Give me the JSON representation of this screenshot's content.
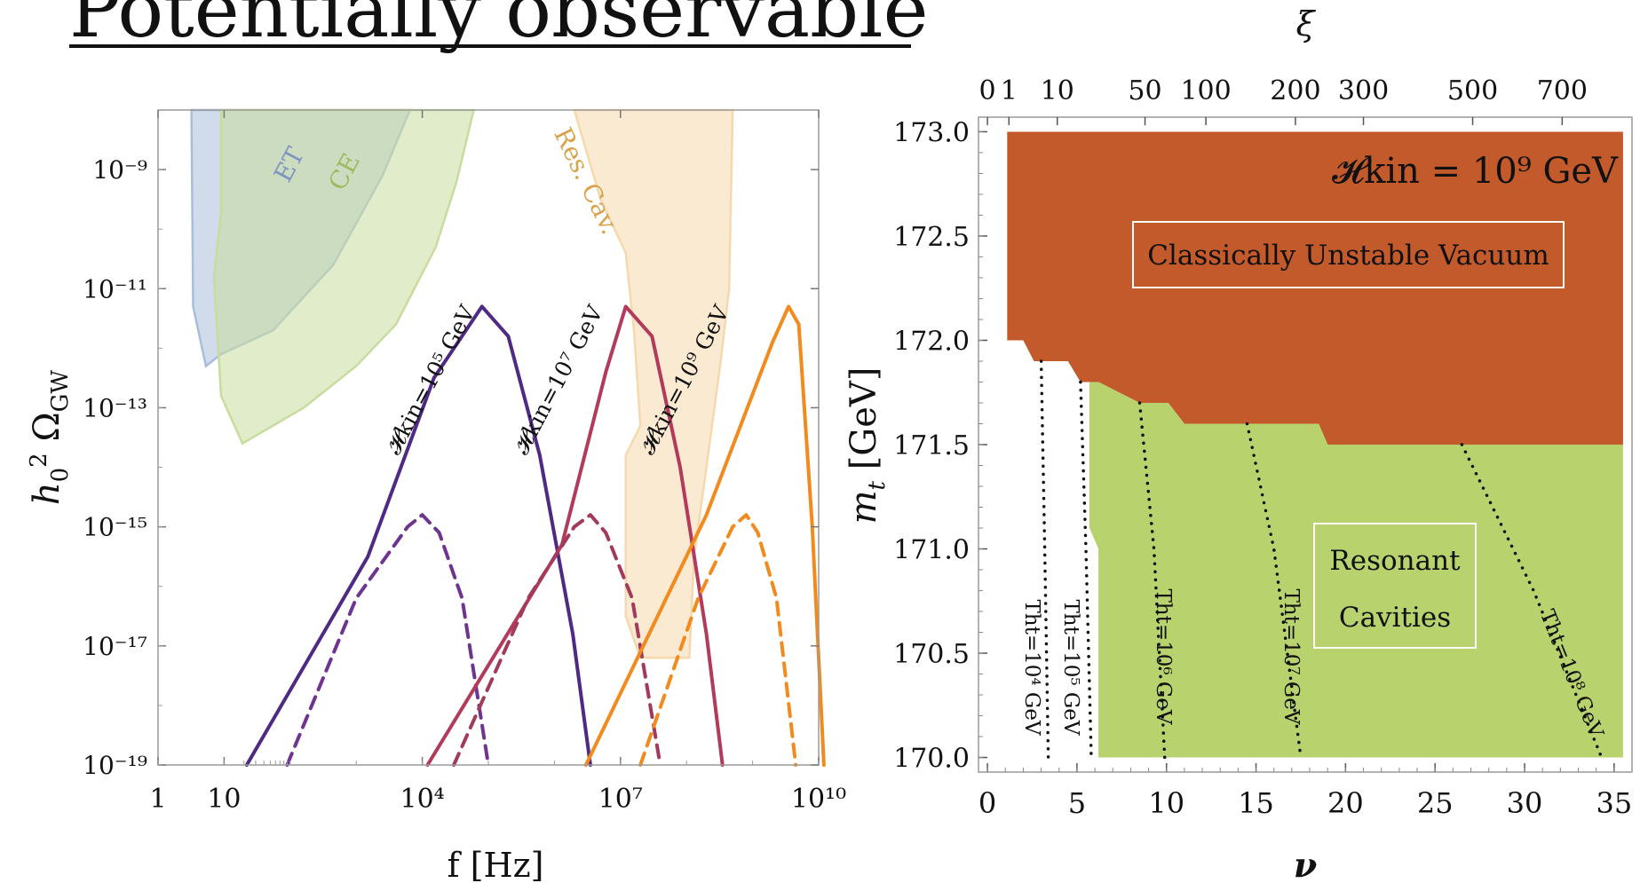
{
  "page": {
    "title": "Potentially observable"
  },
  "chart_data": [
    {
      "type": "line",
      "xlabel": "f [Hz]",
      "ylabel": "h0^2 ΩGW",
      "ylabel_main": "h",
      "ylabel_sub": "0",
      "ylabel_sup": "2",
      "ylabel_omega": "Ω",
      "ylabel_omega_sub": "GW",
      "x_scale": "log",
      "y_scale": "log",
      "xlim": [
        1,
        10000000000
      ],
      "ylim": [
        1e-19,
        1e-08
      ],
      "x_ticks": [
        {
          "v": 1,
          "label": "1"
        },
        {
          "v": 10,
          "label": "10"
        },
        {
          "v": 10000,
          "label": "10⁴"
        },
        {
          "v": 10000000,
          "label": "10⁷"
        },
        {
          "v": 10000000000,
          "label": "10¹⁰"
        }
      ],
      "y_ticks": [
        {
          "exp": -9,
          "label": "10⁻⁹"
        },
        {
          "exp": -11,
          "label": "10⁻¹¹"
        },
        {
          "exp": -13,
          "label": "10⁻¹³"
        },
        {
          "exp": -15,
          "label": "10⁻¹⁵"
        },
        {
          "exp": -17,
          "label": "10⁻¹⁷"
        },
        {
          "exp": -19,
          "label": "10⁻¹⁹"
        }
      ],
      "sensitivity_regions": [
        {
          "label": "ET",
          "color": "#a9bedb",
          "points": [
            [
              3.2,
              -8
            ],
            [
              3.4,
              -11.3
            ],
            [
              5.3,
              -12.3
            ],
            [
              9,
              -12.1
            ],
            [
              55,
              -11.7
            ],
            [
              450,
              -10.6
            ],
            [
              2500,
              -9.1
            ],
            [
              6500,
              -8
            ]
          ]
        },
        {
          "label": "CE",
          "color": "#c8dc9e",
          "points": [
            [
              9,
              -8
            ],
            [
              9,
              -9.7
            ],
            [
              7,
              -10.8
            ],
            [
              9,
              -12.8
            ],
            [
              19,
              -13.6
            ],
            [
              160,
              -13
            ],
            [
              1000,
              -12.3
            ],
            [
              4000,
              -11.6
            ],
            [
              16000,
              -10.3
            ],
            [
              33000,
              -9.2
            ],
            [
              60000,
              -8
            ]
          ]
        },
        {
          "label": "Res. Cav.",
          "color": "#f5d9ad",
          "points": [
            [
              2000000,
              -8
            ],
            [
              5000000,
              -9.5
            ],
            [
              12000000,
              -10.4
            ],
            [
              16000000,
              -11.7
            ],
            [
              20000000,
              -13.3
            ],
            [
              12000000,
              -13.8
            ],
            [
              12000000,
              -16.5
            ],
            [
              20000000,
              -17.2
            ],
            [
              110000000,
              -17.2
            ],
            [
              130000000,
              -15.5
            ],
            [
              200000000,
              -14
            ],
            [
              330000000,
              -12.2
            ],
            [
              440000000,
              -11
            ],
            [
              500000000,
              -8
            ]
          ]
        }
      ],
      "series": [
        {
          "name": "𝓗kin=10⁵ GeV",
          "color": "#4e2a84",
          "style": "solid",
          "points": [
            [
              22,
              -19
            ],
            [
              1500,
              -15.5
            ],
            [
              15000,
              -12.5
            ],
            [
              80000,
              -11.3
            ],
            [
              200000,
              -11.8
            ],
            [
              600000,
              -13.8
            ],
            [
              1900000,
              -16.8
            ],
            [
              3500000,
              -19
            ]
          ]
        },
        {
          "name": "",
          "color": "#6e3590",
          "style": "dashed",
          "points": [
            [
              90,
              -19
            ],
            [
              1000,
              -16.2
            ],
            [
              6000,
              -15
            ],
            [
              10000,
              -14.8
            ],
            [
              18000,
              -15.1
            ],
            [
              40000,
              -16.2
            ],
            [
              100000,
              -19
            ]
          ]
        },
        {
          "name": "𝓗kin=10⁷ GeV",
          "color": "#b23a5a",
          "style": "solid",
          "points": [
            [
              12000,
              -19
            ],
            [
              1300000,
              -15.3
            ],
            [
              6000000,
              -12.4
            ],
            [
              12000000,
              -11.3
            ],
            [
              30000000,
              -11.8
            ],
            [
              80000000,
              -14
            ],
            [
              200000000,
              -16.8
            ],
            [
              350000000,
              -19
            ]
          ]
        },
        {
          "name": "",
          "color": "#a23a5a",
          "style": "dashed",
          "points": [
            [
              30000,
              -19
            ],
            [
              400000,
              -16.2
            ],
            [
              2000000,
              -15
            ],
            [
              3500000,
              -14.8
            ],
            [
              6000000,
              -15.1
            ],
            [
              15000000,
              -16.2
            ],
            [
              40000000,
              -19
            ]
          ]
        },
        {
          "name": "𝓗kin=10⁹ GeV",
          "color": "#f28a1e",
          "style": "solid",
          "points": [
            [
              3000000,
              -19
            ],
            [
              200000000,
              -14.8
            ],
            [
              2000000000,
              -11.9
            ],
            [
              3500000000,
              -11.3
            ],
            [
              5000000000,
              -11.6
            ],
            [
              8000000000,
              -15
            ],
            [
              12000000000,
              -19
            ]
          ]
        },
        {
          "name": "",
          "color": "#f28a1e",
          "style": "dashed",
          "points": [
            [
              20000000,
              -19
            ],
            [
              150000000,
              -16.2
            ],
            [
              500000000,
              -15
            ],
            [
              800000000,
              -14.8
            ],
            [
              1200000000,
              -15.1
            ],
            [
              2300000000,
              -16.2
            ],
            [
              4500000000,
              -19
            ]
          ]
        }
      ]
    },
    {
      "type": "area",
      "xlabel": "ν",
      "x2label": "ξ",
      "ylabel": "mt [GeV]",
      "ylabel_main": "m",
      "ylabel_sub": "t",
      "ylabel_unit": " [GeV]",
      "xlim": [
        -0.5,
        36
      ],
      "ylim": [
        169.93,
        173.07
      ],
      "x_ticks": [
        0,
        5,
        10,
        15,
        20,
        25,
        30,
        35
      ],
      "y_ticks": [
        "170.0",
        "170.5",
        "171.0",
        "171.5",
        "172.0",
        "172.5",
        "173.0"
      ],
      "xi_ticks": [
        {
          "label": "0",
          "nu": 0
        },
        {
          "label": "1",
          "nu": 1.2
        },
        {
          "label": "10",
          "nu": 3.9
        },
        {
          "label": "50",
          "nu": 8.8
        },
        {
          "label": "100",
          "nu": 12.2
        },
        {
          "label": "200",
          "nu": 17.2
        },
        {
          "label": "300",
          "nu": 21
        },
        {
          "label": "500",
          "nu": 27.1
        },
        {
          "label": "700",
          "nu": 32.1
        }
      ],
      "annotation": "𝓗kin = 10⁹ GeV",
      "regions": [
        {
          "label": "Classically Unstable Vacuum",
          "color": "#c35a2b",
          "points": [
            [
              1.1,
              173
            ],
            [
              35.5,
              173
            ],
            [
              35.5,
              171.5
            ],
            [
              19,
              171.5
            ],
            [
              18.5,
              171.6
            ],
            [
              11,
              171.6
            ],
            [
              10.1,
              171.7
            ],
            [
              8.5,
              171.7
            ],
            [
              6.2,
              171.8
            ],
            [
              5.2,
              171.8
            ],
            [
              4.5,
              171.9
            ],
            [
              2.6,
              171.9
            ],
            [
              2,
              172
            ],
            [
              1.1,
              172
            ]
          ]
        },
        {
          "label": "Resonant Cavities",
          "color": "#b8d36e",
          "points": [
            [
              5.7,
              171.8
            ],
            [
              6.2,
              171.8
            ],
            [
              8.5,
              171.7
            ],
            [
              10.1,
              171.7
            ],
            [
              11,
              171.6
            ],
            [
              18.5,
              171.6
            ],
            [
              19,
              171.5
            ],
            [
              35.5,
              171.5
            ],
            [
              35.5,
              170
            ],
            [
              6.2,
              170
            ],
            [
              6.2,
              171
            ],
            [
              5.7,
              171.1
            ]
          ]
        }
      ],
      "dotted_lines": [
        {
          "label": "Tht=10⁴ GeV",
          "points": [
            [
              3,
              171.9
            ],
            [
              3.2,
              171
            ],
            [
              3.4,
              170
            ]
          ]
        },
        {
          "label": "Tht=10⁵ GeV",
          "points": [
            [
              5.2,
              171.8
            ],
            [
              5.5,
              171
            ],
            [
              5.8,
              170
            ]
          ]
        },
        {
          "label": "Tht=10⁶ GeV",
          "points": [
            [
              8.5,
              171.7
            ],
            [
              9.3,
              171
            ],
            [
              9.9,
              170
            ]
          ]
        },
        {
          "label": "Tht=10⁷ GeV",
          "points": [
            [
              14.5,
              171.6
            ],
            [
              16,
              171
            ],
            [
              17.5,
              170
            ]
          ]
        },
        {
          "label": "Tht=10⁸ GeV",
          "points": [
            [
              26.5,
              171.5
            ],
            [
              30.5,
              170.8
            ],
            [
              34.3,
              170
            ]
          ]
        }
      ]
    }
  ]
}
